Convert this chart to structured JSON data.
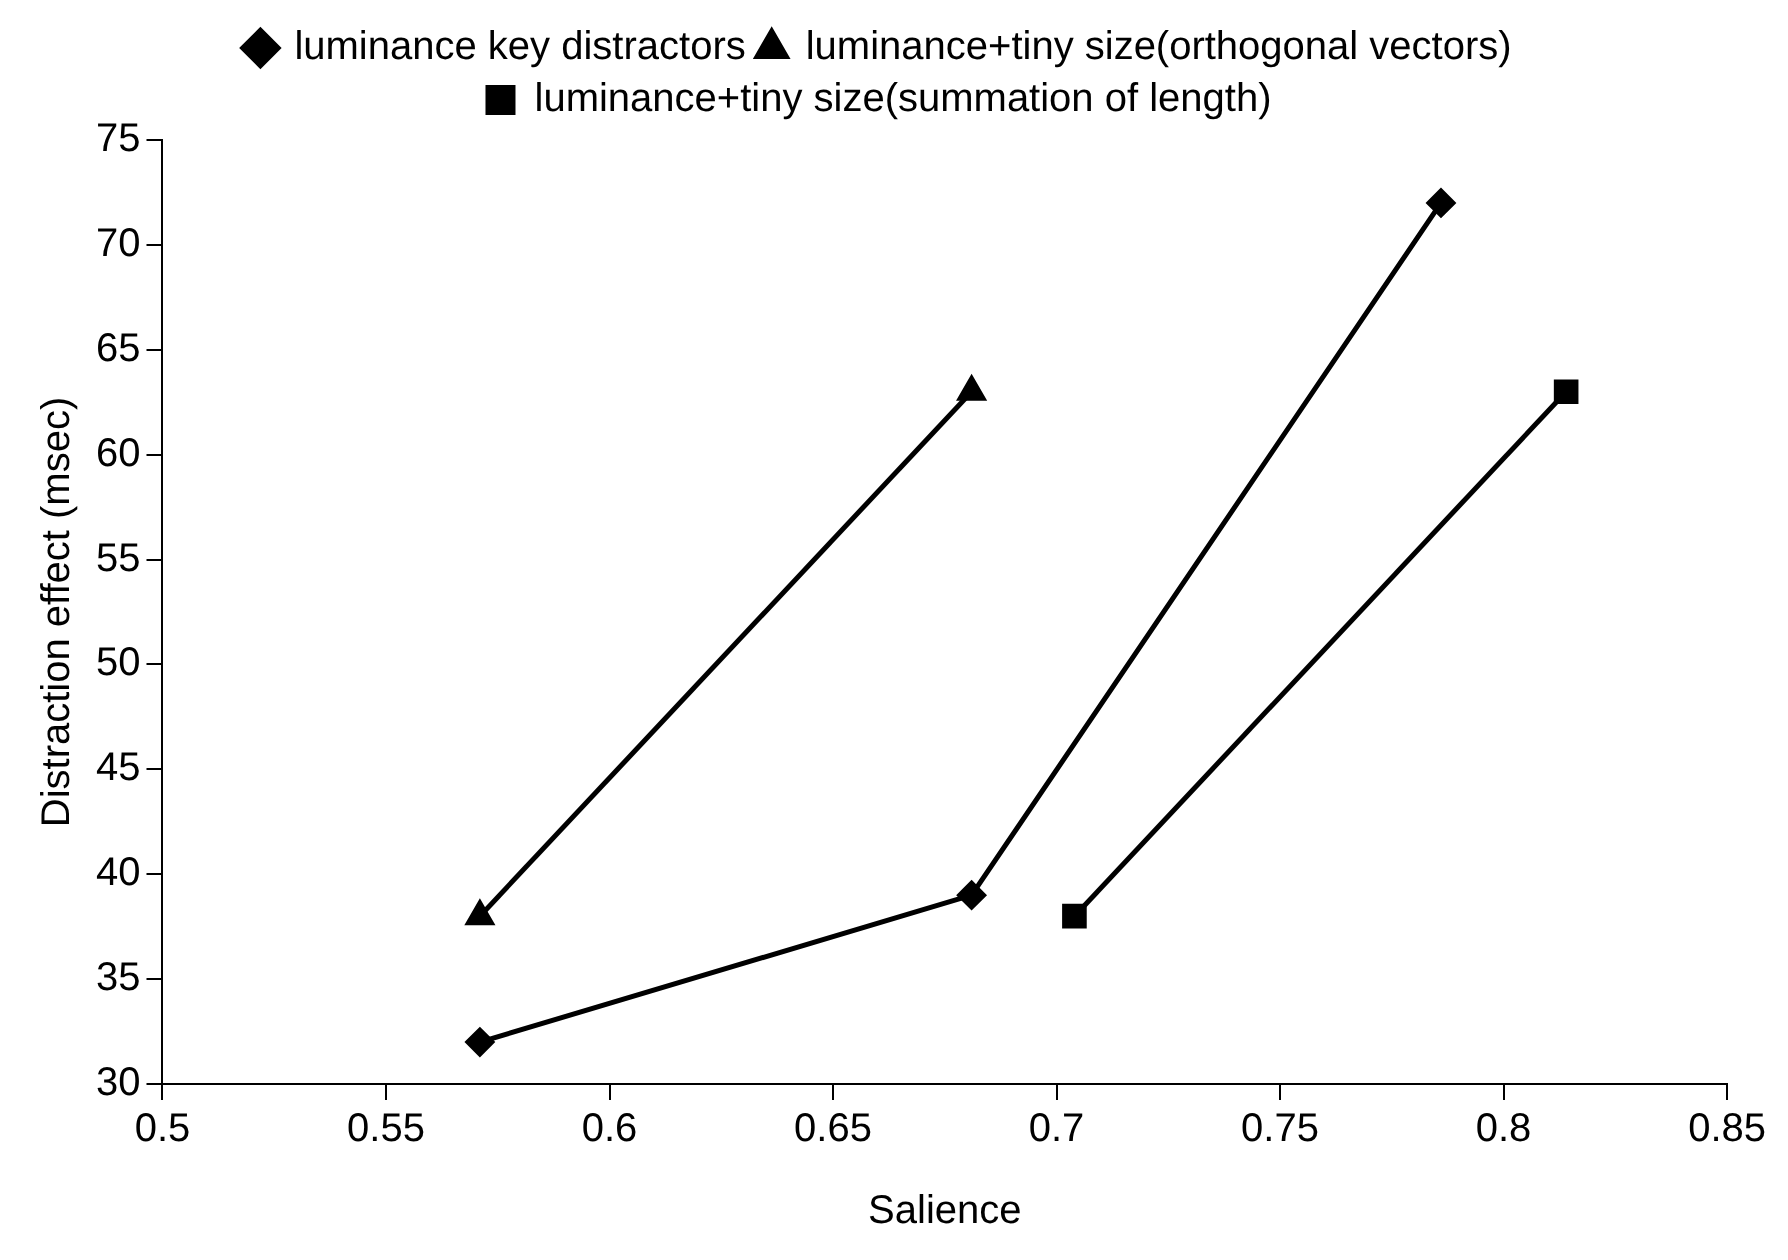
{
  "chart_data": {
    "type": "line",
    "xlabel": "Salience",
    "ylabel": "Distraction effect (msec)",
    "series": [
      {
        "name": "luminance key distractors",
        "color": "#000000",
        "marker": "diamond",
        "x": [
          0.571,
          0.681,
          0.786
        ],
        "values": [
          32,
          39,
          72
        ]
      },
      {
        "name": "luminance+tiny size(orthogonal vectors)",
        "color": "#000000",
        "marker": "triangle",
        "x": [
          0.571,
          0.681
        ],
        "values": [
          38,
          63
        ]
      },
      {
        "name": "luminance+tiny size(summation of length)",
        "color": "#000000",
        "marker": "square",
        "x": [
          0.704,
          0.814
        ],
        "values": [
          38,
          63
        ]
      }
    ],
    "xlim": [
      0.5,
      0.85
    ],
    "xticks": [
      0.5,
      0.55,
      0.6,
      0.65,
      0.7,
      0.75,
      0.8,
      0.85
    ],
    "ylim": [
      30,
      75
    ],
    "yticks": [
      30,
      35,
      40,
      45,
      50,
      55,
      60,
      65,
      70,
      75
    ],
    "grid": false,
    "legend": "top"
  }
}
